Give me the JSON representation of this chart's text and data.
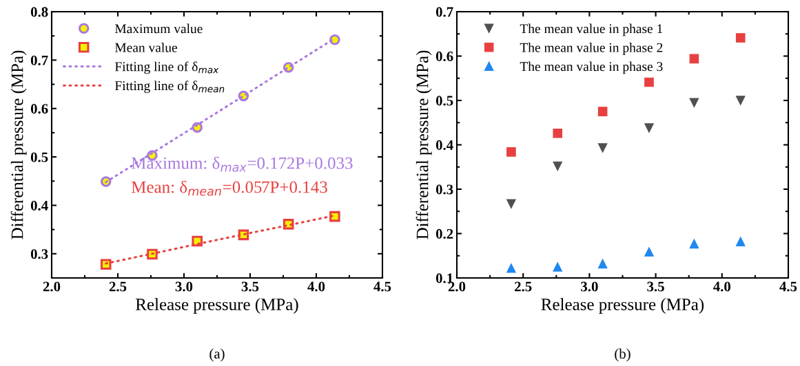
{
  "chart_data": [
    {
      "type": "scatter",
      "xlabel": "Release pressure (MPa)",
      "ylabel": "Differential pressure (MPa)",
      "xlim": [
        2.0,
        4.5
      ],
      "xticks": [
        {
          "value": 2,
          "label": "2.0"
        },
        2.5,
        {
          "value": 3,
          "label": "3.0"
        },
        3.5,
        {
          "value": 4,
          "label": "4.0"
        },
        4.5
      ],
      "ylim": [
        0.25,
        0.8
      ],
      "yticks": [
        0.3,
        0.4,
        0.5,
        0.6,
        0.7,
        0.8
      ],
      "grid": false,
      "legend": "top left",
      "x": [
        2.41,
        2.76,
        3.1,
        3.45,
        3.79,
        4.14
      ],
      "series": [
        {
          "name": "Maximum value",
          "color": "#a878e0",
          "marker": "circle",
          "values": [
            0.449,
            0.503,
            0.561,
            0.626,
            0.685,
            0.742
          ]
        },
        {
          "name": "Mean value",
          "color": "#e84040",
          "marker": "square",
          "values": [
            0.278,
            0.299,
            0.326,
            0.339,
            0.361,
            0.377
          ]
        },
        {
          "name": "Fitting line of δ$_{max}$",
          "type": "line",
          "line_style": "dotted",
          "marker": "none",
          "color": "#a878e0",
          "values": [
            0.448,
            0.508,
            0.566,
            0.626,
            0.685,
            0.745
          ]
        },
        {
          "name": "Fitting line of δ$_{mean}$",
          "type": "line",
          "line_style": "dotted",
          "marker": "none",
          "color": "#e84040",
          "values": [
            0.28,
            0.3,
            0.32,
            0.34,
            0.359,
            0.379
          ]
        }
      ],
      "annotations": [
        "Maximum: δ$_{max}$=0.172P+0.033",
        "Mean: δ$_{mean}$=0.057P+0.143",
        "(a)"
      ]
    },
    {
      "type": "scatter",
      "xlabel": "Release pressure (MPa)",
      "ylabel": "Differential pressure (MPa)",
      "xlim": [
        2.0,
        4.5
      ],
      "xticks": [
        {
          "value": 2,
          "label": "2.0"
        },
        2.5,
        {
          "value": 3,
          "label": "3.0"
        },
        3.5,
        {
          "value": 4,
          "label": "4.0"
        },
        4.5
      ],
      "ylim": [
        0.1,
        0.7
      ],
      "yticks": [
        0.1,
        0.2,
        0.3,
        0.4,
        0.5,
        0.6,
        0.7
      ],
      "grid": false,
      "legend": "top left",
      "x": [
        2.41,
        2.76,
        3.1,
        3.45,
        3.79,
        4.14
      ],
      "series": [
        {
          "name": "The mean value in phase 1",
          "color": "#505050",
          "marker": "triangle_down",
          "values": [
            0.267,
            0.352,
            0.393,
            0.438,
            0.495,
            0.5
          ]
        },
        {
          "name": "The mean value in phase 2",
          "color": "#e84040",
          "marker": "square",
          "values": [
            0.384,
            0.426,
            0.475,
            0.541,
            0.594,
            0.641
          ]
        },
        {
          "name": "The mean value in phase 3",
          "color": "#1e88f0",
          "marker": "triangle",
          "values": [
            0.122,
            0.125,
            0.132,
            0.159,
            0.177,
            0.182
          ]
        }
      ],
      "annotations": [
        "(b)"
      ]
    }
  ]
}
